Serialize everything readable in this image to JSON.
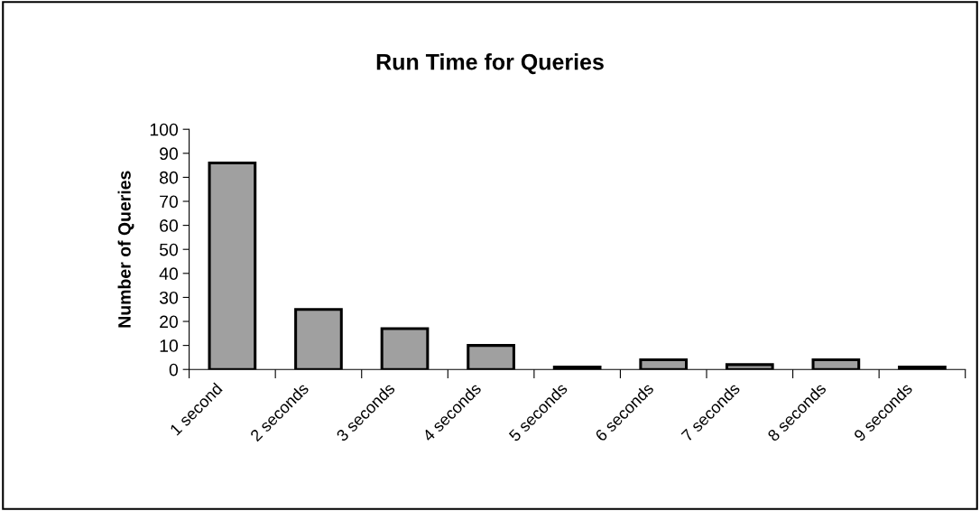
{
  "chart_data": {
    "type": "bar",
    "title": "Run Time for Queries",
    "ylabel": "Number of Queries",
    "categories": [
      "1 second",
      "2 seconds",
      "3 seconds",
      "4 seconds",
      "5 seconds",
      "6 seconds",
      "7 seconds",
      "8 seconds",
      "9 seconds"
    ],
    "values": [
      86,
      25,
      17,
      10,
      1,
      4,
      2,
      4,
      1
    ],
    "color": "#a0a0a0",
    "ylim": [
      0,
      100
    ],
    "yticks": [
      0,
      10,
      20,
      30,
      40,
      50,
      60,
      70,
      80,
      90,
      100
    ],
    "grid": false,
    "legend": false
  }
}
